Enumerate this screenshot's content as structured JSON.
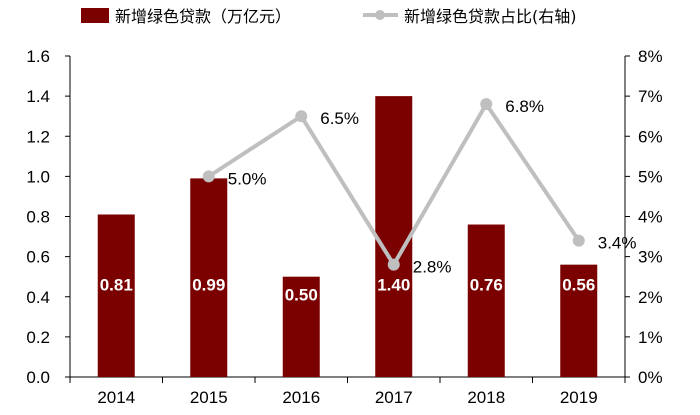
{
  "chart_data": {
    "type": "bar",
    "categories": [
      "2014",
      "2015",
      "2016",
      "2017",
      "2018",
      "2019"
    ],
    "series": [
      {
        "name": "新增绿色贷款（万亿元）",
        "type": "bar",
        "axis": "left",
        "values": [
          0.81,
          0.99,
          0.5,
          1.4,
          0.76,
          0.56
        ],
        "labels": [
          "0.81",
          "0.99",
          "0.50",
          "1.40",
          "0.76",
          "0.56"
        ],
        "color": "#7b0000"
      },
      {
        "name": "新增绿色贷款占比(右轴)",
        "type": "line",
        "axis": "right",
        "values": [
          null,
          5.0,
          6.5,
          2.8,
          6.8,
          3.4
        ],
        "labels": [
          "",
          "5.0%",
          "6.5%",
          "2.8%",
          "6.8%",
          "3.4%"
        ],
        "color": "#bfbfbf"
      }
    ],
    "y_left": {
      "range": [
        0,
        1.6
      ],
      "ticks": [
        "0.0",
        "0.2",
        "0.4",
        "0.6",
        "0.8",
        "1.0",
        "1.2",
        "1.4",
        "1.6"
      ]
    },
    "y_right": {
      "range": [
        0,
        8
      ],
      "ticks": [
        "0%",
        "1%",
        "2%",
        "3%",
        "4%",
        "5%",
        "6%",
        "7%",
        "8%"
      ]
    },
    "grid": false,
    "legend_position": "top"
  }
}
